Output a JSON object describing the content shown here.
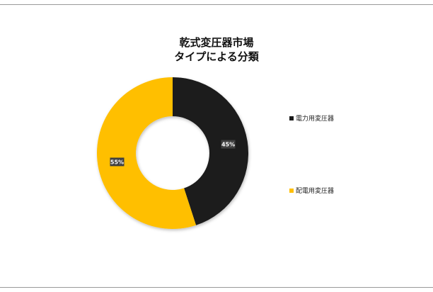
{
  "chart_data": {
    "type": "pie",
    "variant": "donut",
    "title": "乾式変圧器市場",
    "subtitle": "タイプによる分類",
    "slices": [
      {
        "label": "電力用変圧器",
        "value": 45,
        "display": "45%",
        "color": "#1a1a1a"
      },
      {
        "label": "配電用変圧器",
        "value": 55,
        "display": "55%",
        "color": "#ffbf00"
      }
    ],
    "legend_position": "right"
  }
}
